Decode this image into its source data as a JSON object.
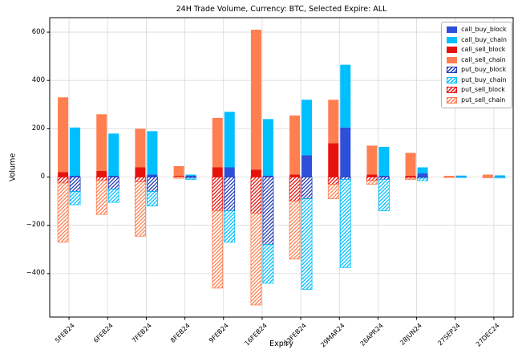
{
  "figure": {
    "background": "#ffffff"
  },
  "chart_data": {
    "type": "bar",
    "title": "24H Trade Volume, Currency: BTC, Selected Expire: ALL",
    "xlabel": "Expiry",
    "ylabel": "Volume",
    "ylim": [
      -580,
      660
    ],
    "yticks": [
      -400,
      -200,
      0,
      200,
      400,
      600
    ],
    "ytick_labels": [
      "−400",
      "−200",
      "0",
      "200",
      "400",
      "600"
    ],
    "grid": true,
    "grid_color": "#d9d9d9",
    "legend_position": "upper right",
    "categories": [
      "5FEB24",
      "6FEB24",
      "7FEB24",
      "8FEB24",
      "9FEB24",
      "16FEB24",
      "23FEB24",
      "29MAR24",
      "26APR24",
      "28JUN24",
      "27SEP24",
      "27DEC24"
    ],
    "series": [
      {
        "name": "call_buy_block",
        "bar": "buy",
        "color": "#2e4fd8",
        "hatch": false,
        "values": [
          5,
          5,
          10,
          5,
          40,
          5,
          90,
          205,
          5,
          15,
          3,
          3
        ]
      },
      {
        "name": "call_buy_chain",
        "bar": "buy",
        "color": "#00bfff",
        "hatch": false,
        "values": [
          200,
          175,
          180,
          5,
          230,
          235,
          230,
          260,
          120,
          25,
          3,
          4
        ]
      },
      {
        "name": "call_sell_block",
        "bar": "sell",
        "color": "#e8120c",
        "hatch": false,
        "values": [
          20,
          25,
          40,
          5,
          40,
          30,
          10,
          140,
          10,
          5,
          0,
          2
        ]
      },
      {
        "name": "call_sell_chain",
        "bar": "sell",
        "color": "#ff7f50",
        "hatch": false,
        "values": [
          310,
          235,
          160,
          40,
          205,
          580,
          245,
          180,
          120,
          95,
          5,
          8
        ]
      },
      {
        "name": "put_buy_block",
        "bar": "buy",
        "color": "#1e3ab8",
        "hatch": true,
        "values": [
          -60,
          -50,
          -60,
          -5,
          -140,
          -280,
          -90,
          -10,
          -10,
          -5,
          0,
          0
        ]
      },
      {
        "name": "put_buy_chain",
        "bar": "buy",
        "color": "#00bfff",
        "hatch": true,
        "values": [
          -55,
          -55,
          -60,
          -5,
          -130,
          -160,
          -375,
          -365,
          -130,
          -10,
          -2,
          -4
        ]
      },
      {
        "name": "put_sell_block",
        "bar": "sell",
        "color": "#e8120c",
        "hatch": true,
        "values": [
          -25,
          -15,
          -20,
          0,
          -140,
          -150,
          -100,
          -30,
          -15,
          -5,
          0,
          0
        ]
      },
      {
        "name": "put_sell_chain",
        "bar": "sell",
        "color": "#ff7f50",
        "hatch": true,
        "values": [
          -245,
          -140,
          -225,
          -5,
          -320,
          -380,
          -240,
          -60,
          -15,
          -5,
          -2,
          -3
        ]
      }
    ]
  }
}
